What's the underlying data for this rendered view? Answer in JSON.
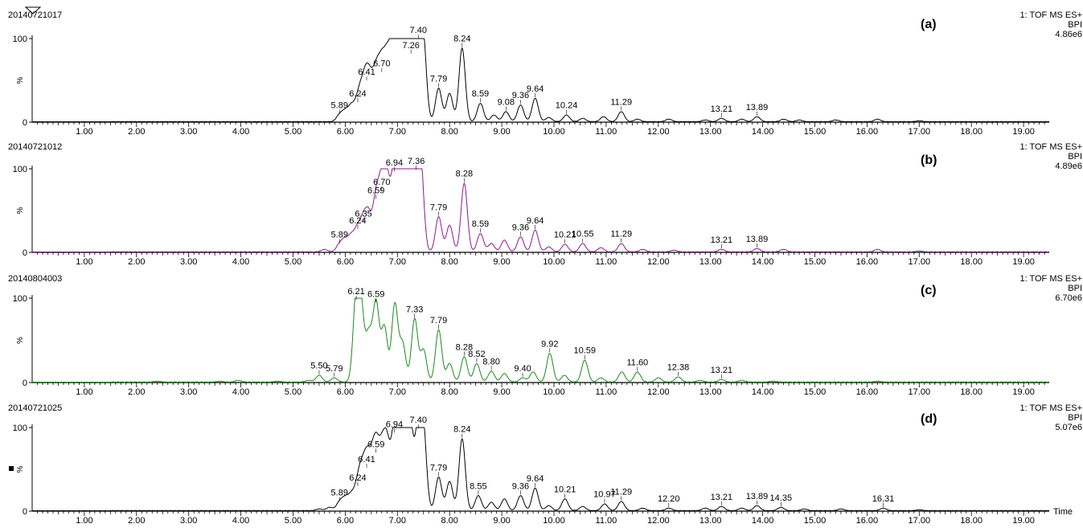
{
  "x_axis": {
    "ticks": [
      "1.00",
      "2.00",
      "3.00",
      "4.00",
      "5.00",
      "6.00",
      "7.00",
      "8.00",
      "9.00",
      "10.00",
      "11.00",
      "12.00",
      "13.00",
      "14.00",
      "15.00",
      "16.00",
      "17.00",
      "18.00",
      "19.00"
    ],
    "label": "Time"
  },
  "y_axis": {
    "ticks": [
      "100",
      "0"
    ],
    "label": "%"
  },
  "panels": [
    {
      "sample": "20140721017",
      "letter": "(a)",
      "detector": "1: TOF MS ES+",
      "trace": "BPI",
      "intensity": "4.86e6",
      "color": "#000000"
    },
    {
      "sample": "20140721012",
      "letter": "(b)",
      "detector": "1: TOF MS ES+",
      "trace": "BPI",
      "intensity": "4.89e6",
      "color": "#8b1a8b"
    },
    {
      "sample": "20140804003",
      "letter": "(c)",
      "detector": "1: TOF MS ES+",
      "trace": "BPI",
      "intensity": "6.70e6",
      "color": "#1a8a1a"
    },
    {
      "sample": "20140721025",
      "letter": "(d)",
      "detector": "1: TOF MS ES+",
      "trace": "BPI",
      "intensity": "5.07e6",
      "color": "#000000"
    }
  ],
  "chart_data": [
    {
      "type": "line",
      "title": "(a)",
      "xlabel": "",
      "ylabel": "%",
      "xlim": [
        0,
        20
      ],
      "ylim": [
        0,
        100
      ],
      "grid": false,
      "peaks": [
        {
          "x": 5.89,
          "y": 8
        },
        {
          "x": 6.0,
          "y": 12
        },
        {
          "x": 6.12,
          "y": 18
        },
        {
          "x": 6.24,
          "y": 22
        },
        {
          "x": 6.32,
          "y": 30
        },
        {
          "x": 6.41,
          "y": 48
        },
        {
          "x": 6.5,
          "y": 36
        },
        {
          "x": 6.6,
          "y": 52
        },
        {
          "x": 6.7,
          "y": 58
        },
        {
          "x": 6.8,
          "y": 62
        },
        {
          "x": 6.9,
          "y": 70
        },
        {
          "x": 7.0,
          "y": 95
        },
        {
          "x": 7.1,
          "y": 88
        },
        {
          "x": 7.18,
          "y": 90
        },
        {
          "x": 7.26,
          "y": 80
        },
        {
          "x": 7.33,
          "y": 92
        },
        {
          "x": 7.4,
          "y": 98
        },
        {
          "x": 7.5,
          "y": 88
        },
        {
          "x": 7.79,
          "y": 40
        },
        {
          "x": 8.0,
          "y": 34
        },
        {
          "x": 8.24,
          "y": 88
        },
        {
          "x": 8.59,
          "y": 22
        },
        {
          "x": 8.85,
          "y": 8
        },
        {
          "x": 9.08,
          "y": 12
        },
        {
          "x": 9.36,
          "y": 20
        },
        {
          "x": 9.64,
          "y": 28
        },
        {
          "x": 9.9,
          "y": 5
        },
        {
          "x": 10.24,
          "y": 8
        },
        {
          "x": 10.55,
          "y": 4
        },
        {
          "x": 10.95,
          "y": 6
        },
        {
          "x": 11.29,
          "y": 12
        },
        {
          "x": 11.6,
          "y": 3
        },
        {
          "x": 12.2,
          "y": 3
        },
        {
          "x": 12.9,
          "y": 2
        },
        {
          "x": 13.21,
          "y": 4
        },
        {
          "x": 13.6,
          "y": 3
        },
        {
          "x": 13.89,
          "y": 6
        },
        {
          "x": 14.4,
          "y": 3
        },
        {
          "x": 14.7,
          "y": 2
        },
        {
          "x": 15.4,
          "y": 2
        },
        {
          "x": 16.2,
          "y": 3
        },
        {
          "x": 17.0,
          "y": 1
        }
      ],
      "labels": [
        {
          "x": 5.89,
          "y": 8,
          "text": "5.89"
        },
        {
          "x": 6.24,
          "y": 22,
          "text": "6.24"
        },
        {
          "x": 6.41,
          "y": 48,
          "text": "6.41"
        },
        {
          "x": 6.7,
          "y": 58,
          "text": "6.70"
        },
        {
          "x": 7.26,
          "y": 80,
          "text": "7.26"
        },
        {
          "x": 7.4,
          "y": 98,
          "text": "7.40"
        },
        {
          "x": 7.79,
          "y": 40,
          "text": "7.79"
        },
        {
          "x": 8.24,
          "y": 88,
          "text": "8.24"
        },
        {
          "x": 8.59,
          "y": 22,
          "text": "8.59"
        },
        {
          "x": 9.08,
          "y": 12,
          "text": "9.08"
        },
        {
          "x": 9.36,
          "y": 20,
          "text": "9.36"
        },
        {
          "x": 9.64,
          "y": 28,
          "text": "9.64"
        },
        {
          "x": 10.24,
          "y": 8,
          "text": "10.24"
        },
        {
          "x": 11.29,
          "y": 12,
          "text": "11.29"
        },
        {
          "x": 13.21,
          "y": 4,
          "text": "13.21"
        },
        {
          "x": 13.89,
          "y": 6,
          "text": "13.89"
        }
      ]
    },
    {
      "type": "line",
      "title": "(b)",
      "xlabel": "",
      "ylabel": "%",
      "xlim": [
        0,
        20
      ],
      "ylim": [
        0,
        100
      ],
      "grid": false,
      "peaks": [
        {
          "x": 5.6,
          "y": 3
        },
        {
          "x": 5.89,
          "y": 9
        },
        {
          "x": 6.0,
          "y": 14
        },
        {
          "x": 6.12,
          "y": 18
        },
        {
          "x": 6.24,
          "y": 26
        },
        {
          "x": 6.35,
          "y": 34
        },
        {
          "x": 6.45,
          "y": 40
        },
        {
          "x": 6.59,
          "y": 62
        },
        {
          "x": 6.7,
          "y": 72
        },
        {
          "x": 6.8,
          "y": 80
        },
        {
          "x": 6.94,
          "y": 95
        },
        {
          "x": 7.05,
          "y": 88
        },
        {
          "x": 7.15,
          "y": 78
        },
        {
          "x": 7.25,
          "y": 88
        },
        {
          "x": 7.36,
          "y": 97
        },
        {
          "x": 7.45,
          "y": 92
        },
        {
          "x": 7.79,
          "y": 42
        },
        {
          "x": 8.0,
          "y": 32
        },
        {
          "x": 8.28,
          "y": 82
        },
        {
          "x": 8.59,
          "y": 22
        },
        {
          "x": 8.8,
          "y": 10
        },
        {
          "x": 9.05,
          "y": 14
        },
        {
          "x": 9.36,
          "y": 18
        },
        {
          "x": 9.64,
          "y": 26
        },
        {
          "x": 9.9,
          "y": 6
        },
        {
          "x": 10.21,
          "y": 9
        },
        {
          "x": 10.55,
          "y": 10
        },
        {
          "x": 10.9,
          "y": 5
        },
        {
          "x": 11.29,
          "y": 10
        },
        {
          "x": 11.7,
          "y": 3
        },
        {
          "x": 12.3,
          "y": 2
        },
        {
          "x": 13.21,
          "y": 3
        },
        {
          "x": 13.89,
          "y": 4
        },
        {
          "x": 14.4,
          "y": 3
        },
        {
          "x": 16.2,
          "y": 3
        },
        {
          "x": 17.0,
          "y": 1
        }
      ],
      "labels": [
        {
          "x": 5.89,
          "y": 9,
          "text": "5.89"
        },
        {
          "x": 6.24,
          "y": 26,
          "text": "6.24"
        },
        {
          "x": 6.35,
          "y": 34,
          "text": "6.35"
        },
        {
          "x": 6.59,
          "y": 62,
          "text": "6.59"
        },
        {
          "x": 6.7,
          "y": 72,
          "text": "6.70"
        },
        {
          "x": 6.94,
          "y": 95,
          "text": "6.94"
        },
        {
          "x": 7.36,
          "y": 97,
          "text": "7.36"
        },
        {
          "x": 7.79,
          "y": 42,
          "text": "7.79"
        },
        {
          "x": 8.28,
          "y": 82,
          "text": "8.28"
        },
        {
          "x": 8.59,
          "y": 22,
          "text": "8.59"
        },
        {
          "x": 9.36,
          "y": 18,
          "text": "9.36"
        },
        {
          "x": 9.64,
          "y": 26,
          "text": "9.64"
        },
        {
          "x": 10.21,
          "y": 9,
          "text": "10.21"
        },
        {
          "x": 10.55,
          "y": 10,
          "text": "10.55"
        },
        {
          "x": 11.29,
          "y": 10,
          "text": "11.29"
        },
        {
          "x": 13.21,
          "y": 3,
          "text": "13.21"
        },
        {
          "x": 13.89,
          "y": 4,
          "text": "13.89"
        }
      ]
    },
    {
      "type": "line",
      "title": "(c)",
      "xlabel": "",
      "ylabel": "%",
      "xlim": [
        0,
        20
      ],
      "ylim": [
        0,
        100
      ],
      "grid": false,
      "peaks": [
        {
          "x": 2.4,
          "y": 1
        },
        {
          "x": 3.6,
          "y": 1
        },
        {
          "x": 3.95,
          "y": 2
        },
        {
          "x": 4.7,
          "y": 1
        },
        {
          "x": 5.3,
          "y": 2
        },
        {
          "x": 5.5,
          "y": 8
        },
        {
          "x": 5.79,
          "y": 5
        },
        {
          "x": 6.21,
          "y": 96
        },
        {
          "x": 6.3,
          "y": 82
        },
        {
          "x": 6.45,
          "y": 55
        },
        {
          "x": 6.59,
          "y": 93
        },
        {
          "x": 6.75,
          "y": 65
        },
        {
          "x": 6.95,
          "y": 92
        },
        {
          "x": 7.1,
          "y": 45
        },
        {
          "x": 7.33,
          "y": 75
        },
        {
          "x": 7.5,
          "y": 38
        },
        {
          "x": 7.79,
          "y": 62
        },
        {
          "x": 8.0,
          "y": 22
        },
        {
          "x": 8.28,
          "y": 30
        },
        {
          "x": 8.52,
          "y": 22
        },
        {
          "x": 8.8,
          "y": 13
        },
        {
          "x": 9.05,
          "y": 10
        },
        {
          "x": 9.4,
          "y": 5
        },
        {
          "x": 9.6,
          "y": 12
        },
        {
          "x": 9.92,
          "y": 34
        },
        {
          "x": 10.2,
          "y": 8
        },
        {
          "x": 10.59,
          "y": 26
        },
        {
          "x": 10.9,
          "y": 5
        },
        {
          "x": 11.3,
          "y": 12
        },
        {
          "x": 11.6,
          "y": 12
        },
        {
          "x": 12.0,
          "y": 5
        },
        {
          "x": 12.38,
          "y": 6
        },
        {
          "x": 12.8,
          "y": 2
        },
        {
          "x": 13.21,
          "y": 3
        },
        {
          "x": 13.6,
          "y": 2
        },
        {
          "x": 14.2,
          "y": 1
        },
        {
          "x": 16.2,
          "y": 1
        }
      ],
      "labels": [
        {
          "x": 5.5,
          "y": 8,
          "text": "5.50"
        },
        {
          "x": 5.79,
          "y": 5,
          "text": "5.79"
        },
        {
          "x": 6.21,
          "y": 96,
          "text": "6.21"
        },
        {
          "x": 6.59,
          "y": 93,
          "text": "6.59"
        },
        {
          "x": 7.33,
          "y": 75,
          "text": "7.33"
        },
        {
          "x": 7.79,
          "y": 62,
          "text": "7.79"
        },
        {
          "x": 8.28,
          "y": 30,
          "text": "8.28"
        },
        {
          "x": 8.52,
          "y": 22,
          "text": "8.52"
        },
        {
          "x": 8.8,
          "y": 13,
          "text": "8.80"
        },
        {
          "x": 9.4,
          "y": 5,
          "text": "9.40"
        },
        {
          "x": 9.92,
          "y": 34,
          "text": "9.92"
        },
        {
          "x": 10.59,
          "y": 26,
          "text": "10.59"
        },
        {
          "x": 11.6,
          "y": 12,
          "text": "11.60"
        },
        {
          "x": 12.38,
          "y": 6,
          "text": "12.38"
        },
        {
          "x": 13.21,
          "y": 3,
          "text": "13.21"
        }
      ]
    },
    {
      "type": "line",
      "title": "(d)",
      "xlabel": "Time",
      "ylabel": "%",
      "xlim": [
        0,
        20
      ],
      "ylim": [
        0,
        100
      ],
      "grid": false,
      "peaks": [
        {
          "x": 5.5,
          "y": 2
        },
        {
          "x": 5.7,
          "y": 4
        },
        {
          "x": 5.89,
          "y": 10
        },
        {
          "x": 6.0,
          "y": 14
        },
        {
          "x": 6.12,
          "y": 18
        },
        {
          "x": 6.24,
          "y": 28
        },
        {
          "x": 6.32,
          "y": 36
        },
        {
          "x": 6.41,
          "y": 50
        },
        {
          "x": 6.5,
          "y": 42
        },
        {
          "x": 6.59,
          "y": 68
        },
        {
          "x": 6.7,
          "y": 62
        },
        {
          "x": 6.8,
          "y": 74
        },
        {
          "x": 6.94,
          "y": 92
        },
        {
          "x": 7.05,
          "y": 86
        },
        {
          "x": 7.15,
          "y": 78
        },
        {
          "x": 7.25,
          "y": 92
        },
        {
          "x": 7.4,
          "y": 97
        },
        {
          "x": 7.5,
          "y": 90
        },
        {
          "x": 7.79,
          "y": 40
        },
        {
          "x": 8.0,
          "y": 35
        },
        {
          "x": 8.24,
          "y": 86
        },
        {
          "x": 8.55,
          "y": 18
        },
        {
          "x": 8.8,
          "y": 10
        },
        {
          "x": 9.05,
          "y": 14
        },
        {
          "x": 9.36,
          "y": 18
        },
        {
          "x": 9.64,
          "y": 27
        },
        {
          "x": 9.9,
          "y": 6
        },
        {
          "x": 10.21,
          "y": 14
        },
        {
          "x": 10.55,
          "y": 5
        },
        {
          "x": 10.97,
          "y": 8
        },
        {
          "x": 11.29,
          "y": 11
        },
        {
          "x": 11.7,
          "y": 3
        },
        {
          "x": 12.2,
          "y": 3
        },
        {
          "x": 12.9,
          "y": 3
        },
        {
          "x": 13.21,
          "y": 5
        },
        {
          "x": 13.6,
          "y": 3
        },
        {
          "x": 13.89,
          "y": 6
        },
        {
          "x": 14.35,
          "y": 4
        },
        {
          "x": 14.8,
          "y": 2
        },
        {
          "x": 15.5,
          "y": 2
        },
        {
          "x": 16.31,
          "y": 3
        },
        {
          "x": 17.0,
          "y": 1
        }
      ],
      "labels": [
        {
          "x": 5.89,
          "y": 10,
          "text": "5.89"
        },
        {
          "x": 6.24,
          "y": 28,
          "text": "6.24"
        },
        {
          "x": 6.41,
          "y": 50,
          "text": "6.41"
        },
        {
          "x": 6.59,
          "y": 68,
          "text": "6.59"
        },
        {
          "x": 6.94,
          "y": 92,
          "text": "6.94"
        },
        {
          "x": 7.4,
          "y": 97,
          "text": "7.40"
        },
        {
          "x": 7.79,
          "y": 40,
          "text": "7.79"
        },
        {
          "x": 8.24,
          "y": 86,
          "text": "8.24"
        },
        {
          "x": 8.55,
          "y": 18,
          "text": "8.55"
        },
        {
          "x": 9.36,
          "y": 18,
          "text": "9.36"
        },
        {
          "x": 9.64,
          "y": 27,
          "text": "9.64"
        },
        {
          "x": 10.21,
          "y": 14,
          "text": "10.21"
        },
        {
          "x": 10.97,
          "y": 8,
          "text": "10.97"
        },
        {
          "x": 11.29,
          "y": 11,
          "text": "11.29"
        },
        {
          "x": 12.2,
          "y": 3,
          "text": "12.20"
        },
        {
          "x": 13.21,
          "y": 5,
          "text": "13.21"
        },
        {
          "x": 13.89,
          "y": 6,
          "text": "13.89"
        },
        {
          "x": 14.35,
          "y": 4,
          "text": "14.35"
        },
        {
          "x": 16.31,
          "y": 3,
          "text": "16.31"
        }
      ]
    }
  ]
}
